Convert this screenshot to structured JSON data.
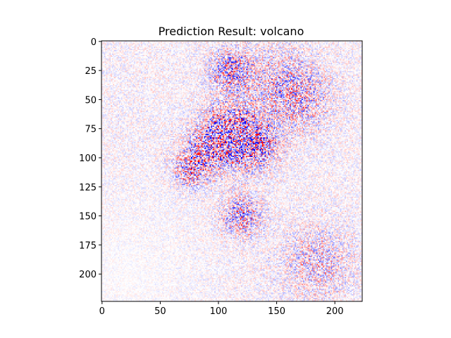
{
  "chart_data": {
    "type": "heatmap",
    "title": "Prediction Result: volcano",
    "xlabel": "",
    "ylabel": "",
    "xlim": [
      0,
      224
    ],
    "ylim": [
      224,
      0
    ],
    "x_ticks": [
      0,
      50,
      100,
      150,
      200
    ],
    "y_ticks": [
      0,
      25,
      50,
      75,
      100,
      125,
      150,
      175,
      200
    ],
    "x_tick_labels": [
      "0",
      "50",
      "100",
      "150",
      "200"
    ],
    "y_tick_labels": [
      "0",
      "25",
      "50",
      "75",
      "100",
      "125",
      "150",
      "175",
      "200"
    ],
    "grid": false,
    "legend": "none",
    "colormap": "diverging blue-white-red (bwr)",
    "colors": {
      "negative": "#0000ff",
      "zero": "#ffffff",
      "positive": "#ff0000"
    },
    "content": "Pixel-wise attribution map; strongest positive and negative values cluster around x 80-140, y 60-110, with secondary activity near x 90-130, y 140-160 and near the top (x 95-130, y 15-35); lower-left region is near zero.",
    "hotspots": [
      {
        "x": 110,
        "y": 78,
        "sigma": 16,
        "amplitude": 1.0
      },
      {
        "x": 130,
        "y": 90,
        "sigma": 14,
        "amplitude": 0.85
      },
      {
        "x": 90,
        "y": 95,
        "sigma": 13,
        "amplitude": 0.7
      },
      {
        "x": 110,
        "y": 25,
        "sigma": 12,
        "amplitude": 0.75
      },
      {
        "x": 120,
        "y": 150,
        "sigma": 12,
        "amplitude": 0.7
      },
      {
        "x": 75,
        "y": 112,
        "sigma": 10,
        "amplitude": 0.6
      },
      {
        "x": 170,
        "y": 50,
        "sigma": 18,
        "amplitude": 0.45
      },
      {
        "x": 185,
        "y": 190,
        "sigma": 20,
        "amplitude": 0.4
      },
      {
        "x": 150,
        "y": 35,
        "sigma": 22,
        "amplitude": 0.35
      }
    ]
  }
}
